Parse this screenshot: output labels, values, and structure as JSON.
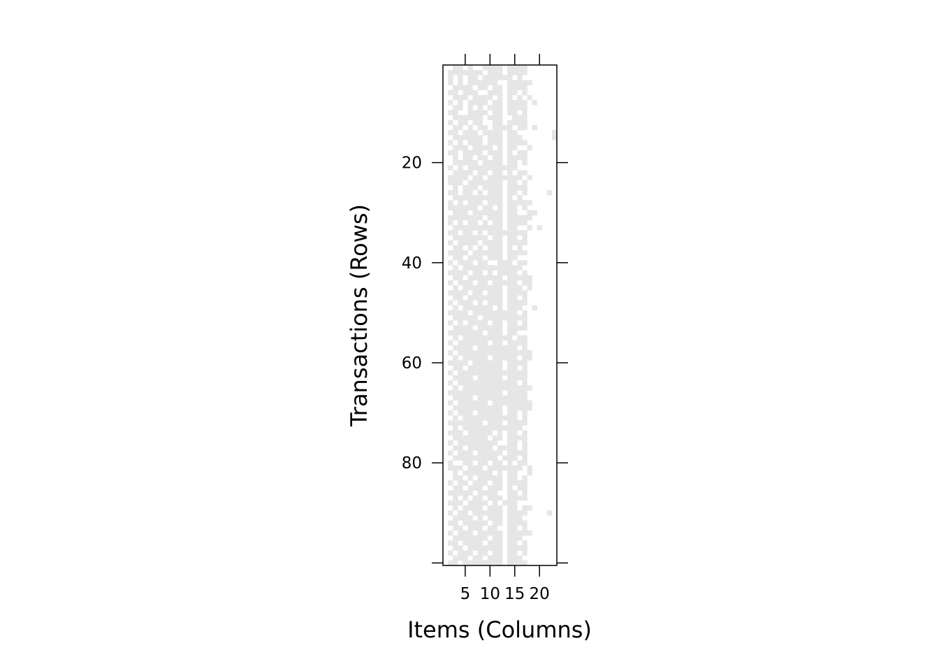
{
  "chart_data": {
    "type": "heatmap",
    "title": "",
    "xlabel": "Items (Columns)",
    "ylabel": "Transactions (Rows)",
    "n_items": 23,
    "n_transactions": 100,
    "xlim": [
      0.5,
      23.5
    ],
    "ylim": [
      100.5,
      0.5
    ],
    "x_ticks": [
      5,
      10,
      15,
      20
    ],
    "y_ticks": [
      20,
      40,
      60,
      80,
      100
    ],
    "x_tick_labels": [
      "5",
      "10",
      "15",
      "20"
    ],
    "y_tick_labels": [
      "20",
      "40",
      "60",
      "80",
      ""
    ],
    "colors": {
      "present": "#e6e6e6",
      "absent": "#ffffff",
      "axis": "#000000"
    },
    "rows": [
      "00110100111101111000000",
      "01111111011101111000000",
      "01010110111111010000000",
      "01010111111001111100000",
      "00111101101101111000000",
      "01101110011101101000000",
      "00111011110101010100000",
      "01010111101101111010000",
      "00110101011101111000000",
      "01100111101101101000000",
      "00111111011100111000000",
      "01011011001101111000000",
      "00110101101111011010000",
      "01101110111101100000001",
      "00111111011101110000001",
      "01010111011101111000000",
      "00111011110101100100000",
      "01101111011101011000000",
      "00101101101101111000000",
      "00111110111101101000000",
      "01010111111111100000000",
      "00111101101101011000000",
      "01111011011111110100000",
      "01110111111101101000000",
      "00101110111101111000000",
      "01101101011101101000010",
      "00111111111101010000000",
      "01010111011101111100000",
      "01111110110101101000000",
      "00111011111101100110000",
      "01111111011101111100000",
      "01010110101101111000000",
      "00111111111101100101000",
      "01101101011111111000000",
      "00111111101101101000000",
      "01011110111101111000000",
      "00110101011101010000000",
      "01111011111101111000000",
      "00110111011101100000000",
      "01011101100111011000000",
      "00101111111111110000000",
      "01111011010111101000000",
      "00110111111101111100000",
      "01011101101111101100000",
      "00101111111101110100000",
      "01111011011101111000000",
      "00110111111101101000000",
      "01011101011101111000000",
      "00101111110101110010000",
      "01111011111111101000000",
      "00111110111111111000000",
      "01010111101101101000000",
      "00111101111101111000000",
      "01111111011101100000000",
      "00101111111111011000000",
      "01011111101101111000000",
      "00111101111111101000000",
      "01011111111111111100000",
      "00101111101111101100000",
      "01111011111101111000000",
      "00110111111101101000000",
      "01011111111111111000000",
      "00111101111101111000000",
      "01011111111111101000000",
      "00101111111111111100000",
      "01111111111101111000000",
      "00111101111111111000000",
      "01011111101111111100000",
      "00111111111101111100000",
      "01011101111101101000000",
      "00101111111111101000000",
      "01111111011101111000000",
      "00101111111111110000000",
      "01110111110101101000000",
      "00111111101101111000000",
      "01011111111001101000000",
      "00110111110111101000000",
      "01011101111101111000000",
      "00111111111011101000000",
      "01001101101101011000000",
      "01110111011111110100000",
      "00101111110101100100000",
      "00110101111101101000000",
      "01011011101101111000000",
      "00110111011101011000000",
      "01111101111001101000000",
      "00101011011101111000000",
      "01110111101011100000000",
      "00101111011101101100000",
      "01011011111101111000010",
      "00111101011101110000000",
      "01101111101101111000000",
      "00110111011001101000000",
      "01011101111101111100000",
      "00111111101101110000000",
      "01101111011101101000000",
      "00110111111101111000000",
      "01011101101101101000000",
      "00111011011101110000000",
      "01101111111101111000000"
    ]
  }
}
